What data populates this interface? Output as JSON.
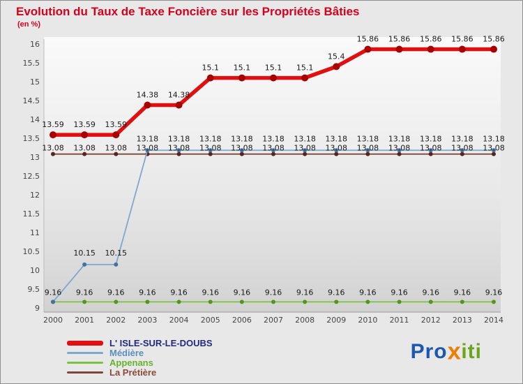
{
  "page": {
    "title_color": "#d6001c"
  },
  "chart_data": {
    "type": "line",
    "title": "Evolution du Taux de Taxe Foncière sur les Propriétés Bâties",
    "subtitle": "(en %)",
    "xlabel": "",
    "ylabel": "",
    "x": [
      2000,
      2001,
      2002,
      2003,
      2004,
      2005,
      2006,
      2007,
      2008,
      2009,
      2010,
      2011,
      2012,
      2013,
      2014
    ],
    "ylim": [
      9,
      16
    ],
    "ytick_step": 0.5,
    "grid": false,
    "legend_position": "bottom-left",
    "series": [
      {
        "name": "L' ISLE-SUR-LE-DOUBS",
        "color": "#e01010",
        "marker_color": "#a80000",
        "line_width": 5.5,
        "marker_radius": 5,
        "label_dy": -11,
        "values": [
          13.59,
          13.59,
          13.59,
          14.38,
          14.38,
          15.1,
          15.1,
          15.1,
          15.1,
          15.4,
          15.86,
          15.86,
          15.86,
          15.86,
          15.86
        ]
      },
      {
        "name": "Médière",
        "color": "#7fa8cf",
        "marker_color": "#44719f",
        "line_width": 1.8,
        "marker_radius": 3,
        "label_dy": -13,
        "label_skip": [
          0
        ],
        "values": [
          9.16,
          10.15,
          10.15,
          13.18,
          13.18,
          13.18,
          13.18,
          13.18,
          13.18,
          13.18,
          13.18,
          13.18,
          13.18,
          13.18,
          13.18
        ]
      },
      {
        "name": "Appenans",
        "color": "#7cc142",
        "marker_color": "#55951c",
        "line_width": 1.8,
        "marker_radius": 3,
        "label_dy": -10,
        "values": [
          9.16,
          9.16,
          9.16,
          9.16,
          9.16,
          9.16,
          9.16,
          9.16,
          9.16,
          9.16,
          9.16,
          9.16,
          9.16,
          9.16,
          9.16
        ]
      },
      {
        "name": "La Prétière",
        "color": "#7e453a",
        "marker_color": "#59241c",
        "line_width": 1.8,
        "marker_radius": 3,
        "label_dy": -5,
        "values": [
          13.08,
          13.08,
          13.08,
          13.08,
          13.08,
          13.08,
          13.08,
          13.08,
          13.08,
          13.08,
          13.08,
          13.08,
          13.08,
          13.08,
          13.08
        ]
      }
    ]
  },
  "legend": {
    "label_colors": [
      "#232a7c",
      "#5b8fbe",
      "#68b22b",
      "#8a4a3a"
    ]
  },
  "logo": {
    "pro": "Pro",
    "x": "x",
    "iti": "iti",
    "pro_color": "#1d57b0",
    "x_color": "#f07d00",
    "iti_color": "#6aa51c"
  }
}
